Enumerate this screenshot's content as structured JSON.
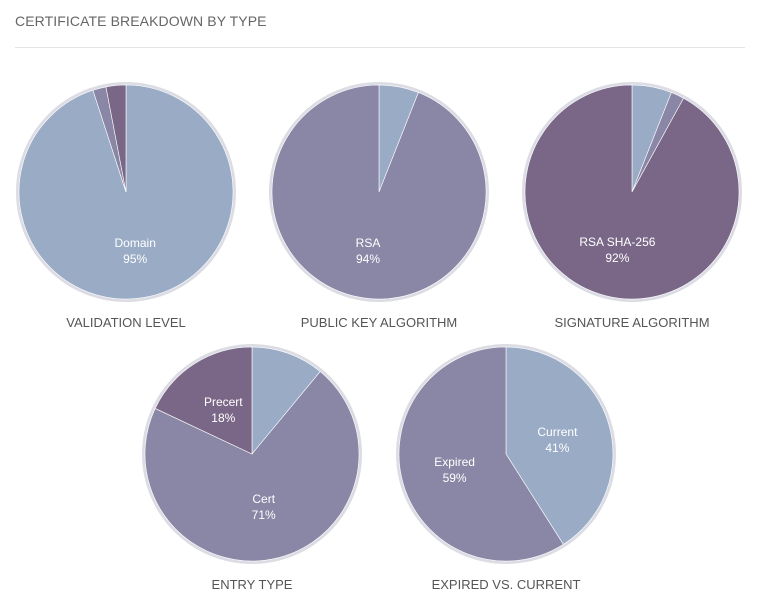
{
  "header": {
    "title": "CERTIFICATE BREAKDOWN BY TYPE"
  },
  "colors": {
    "light": "#9aabc5",
    "mid": "#8a86a5",
    "dark": "#7a6788",
    "rim": "#dcdce4"
  },
  "chart_data": [
    {
      "type": "pie",
      "title": "VALIDATION LEVEL",
      "slices": [
        {
          "name": "Domain",
          "value": 95,
          "color": "#9aabc5",
          "label": "Domain",
          "pct_label": "95%",
          "show_label": true
        },
        {
          "name": "",
          "value": 2,
          "color": "#8a86a5",
          "show_label": false
        },
        {
          "name": "",
          "value": 3,
          "color": "#7a6788",
          "show_label": false
        }
      ]
    },
    {
      "type": "pie",
      "title": "PUBLIC KEY ALGORITHM",
      "slices": [
        {
          "name": "",
          "value": 6,
          "color": "#9aabc5",
          "show_label": false
        },
        {
          "name": "RSA",
          "value": 94,
          "color": "#8a86a5",
          "label": "RSA",
          "pct_label": "94%",
          "show_label": true
        }
      ]
    },
    {
      "type": "pie",
      "title": "SIGNATURE ALGORITHM",
      "slices": [
        {
          "name": "",
          "value": 6,
          "color": "#9aabc5",
          "show_label": false
        },
        {
          "name": "",
          "value": 2,
          "color": "#8a86a5",
          "show_label": false
        },
        {
          "name": "RSA SHA-256",
          "value": 92,
          "color": "#7a6788",
          "label": "RSA SHA-256",
          "pct_label": "92%",
          "show_label": true
        }
      ]
    },
    {
      "type": "pie",
      "title": "ENTRY TYPE",
      "slices": [
        {
          "name": "",
          "value": 11,
          "color": "#9aabc5",
          "show_label": false
        },
        {
          "name": "Cert",
          "value": 71,
          "color": "#8a86a5",
          "label": "Cert",
          "pct_label": "71%",
          "show_label": true
        },
        {
          "name": "Precert",
          "value": 18,
          "color": "#7a6788",
          "label": "Precert",
          "pct_label": "18%",
          "show_label": true
        }
      ]
    },
    {
      "type": "pie",
      "title": "EXPIRED VS. CURRENT",
      "slices": [
        {
          "name": "Current",
          "value": 41,
          "color": "#9aabc5",
          "label": "Current",
          "pct_label": "41%",
          "show_label": true
        },
        {
          "name": "Expired",
          "value": 59,
          "color": "#8a86a5",
          "label": "Expired",
          "pct_label": "59%",
          "show_label": true
        }
      ]
    }
  ]
}
